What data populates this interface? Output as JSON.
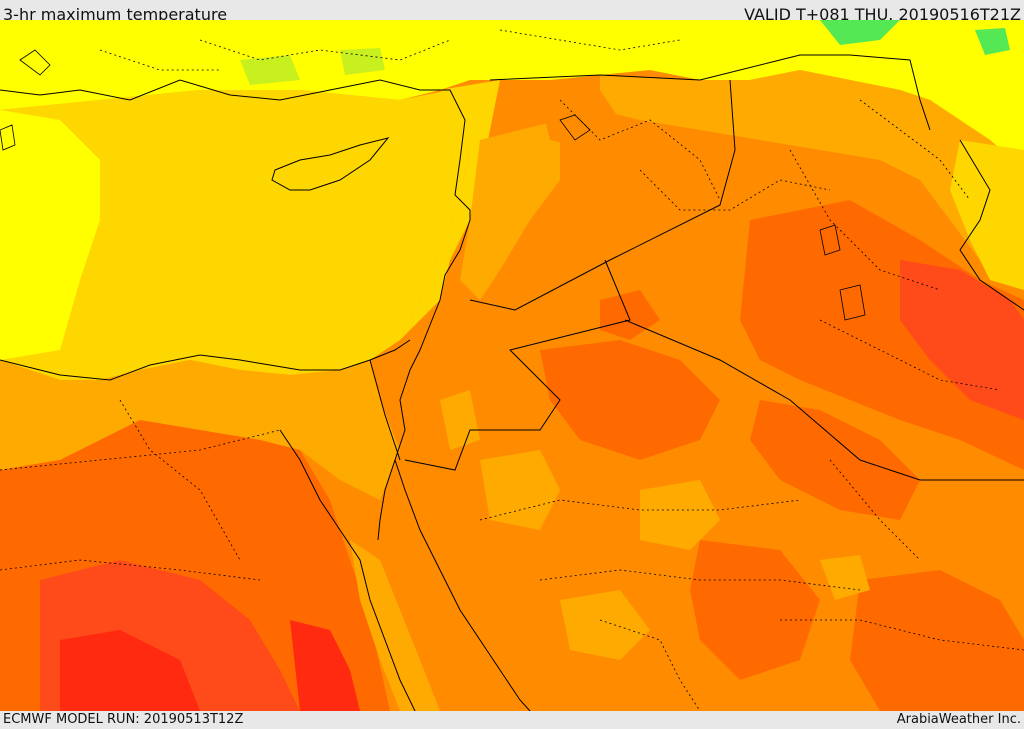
{
  "header": {
    "title": "3-hr maximum temperature",
    "valid": "VALID T+081 THU. 20190516T21Z"
  },
  "footer": {
    "model_run": "ECMWF MODEL RUN: 20190513T12Z",
    "credit": "ArabiaWeather Inc."
  },
  "palette": {
    "cool_green": "#55e855",
    "lime": "#c8f01e",
    "yellow": "#ffff00",
    "gold": "#ffd700",
    "light_orange": "#ffaa00",
    "orange": "#ff8c00",
    "dark_orange": "#ff6a00",
    "red_orange": "#ff4a1a",
    "red": "#ff2a10",
    "border_color": "#000000"
  }
}
